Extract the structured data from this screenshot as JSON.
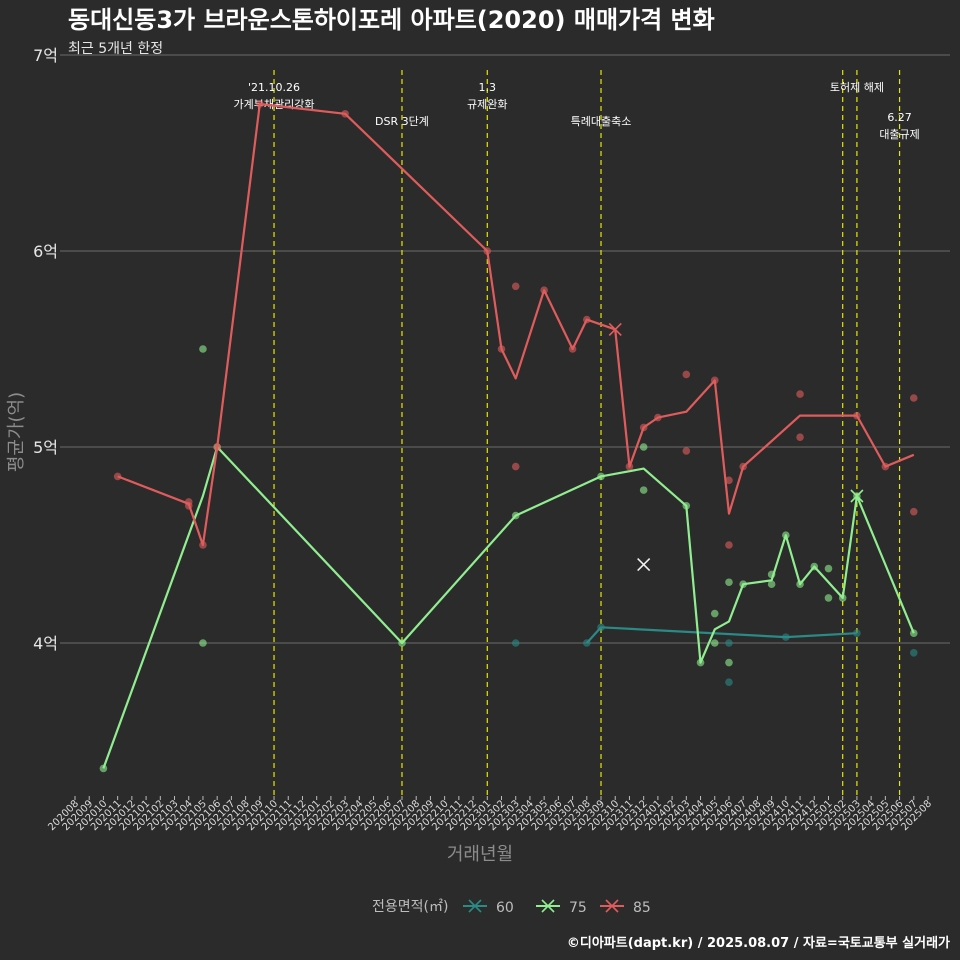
{
  "chart_data": {
    "type": "line",
    "title": "동대신동3가 브라운스톤하이포레 아파트(2020) 매매가격 변화",
    "subtitle": "최근 5개년 한정",
    "xlabel": "거래년월",
    "ylabel": "평균가(억)",
    "ylim": [
      3.25,
      7.0
    ],
    "yticks": [
      4,
      5,
      6,
      7
    ],
    "ytick_labels": [
      "4억",
      "5억",
      "6억",
      "7억"
    ],
    "grid": true,
    "x_categories": [
      "202008",
      "202009",
      "202010",
      "202011",
      "202012",
      "202101",
      "202102",
      "202103",
      "202104",
      "202105",
      "202106",
      "202107",
      "202108",
      "202109",
      "202110",
      "202111",
      "202112",
      "202201",
      "202202",
      "202203",
      "202204",
      "202205",
      "202206",
      "202207",
      "202208",
      "202209",
      "202210",
      "202211",
      "202212",
      "202301",
      "202302",
      "202303",
      "202304",
      "202305",
      "202306",
      "202307",
      "202308",
      "202309",
      "202310",
      "202311",
      "202312",
      "202401",
      "202402",
      "202403",
      "202404",
      "202405",
      "202406",
      "202407",
      "202408",
      "202409",
      "202410",
      "202411",
      "202412",
      "202501",
      "202502",
      "202503",
      "202504",
      "202505",
      "202506",
      "202507",
      "202508"
    ],
    "legend": {
      "title": "전용면적(㎡)",
      "position": "bottom",
      "entries": [
        "60",
        "75",
        "85"
      ]
    },
    "series": [
      {
        "name": "60",
        "color": "#2a8a86",
        "line": [
          [
            "202308",
            4.0
          ],
          [
            "202309",
            4.08
          ],
          [
            "202410",
            4.03
          ],
          [
            "202503",
            4.05
          ]
        ],
        "points": [
          [
            "202303",
            4.0
          ],
          [
            "202308",
            4.0
          ],
          [
            "202309",
            4.08
          ],
          [
            "202406",
            4.0
          ],
          [
            "202406",
            3.8
          ],
          [
            "202410",
            4.03
          ],
          [
            "202503",
            4.05
          ],
          [
            "202507",
            3.95
          ]
        ],
        "cross": []
      },
      {
        "name": "75",
        "color": "#90ee90",
        "line": [
          [
            "202010",
            3.36
          ],
          [
            "202105",
            4.75
          ],
          [
            "202106",
            5.0
          ],
          [
            "202207",
            4.0
          ],
          [
            "202303",
            4.65
          ],
          [
            "202309",
            4.85
          ],
          [
            "202312",
            4.89
          ],
          [
            "202403",
            4.7
          ],
          [
            "202404",
            3.9
          ],
          [
            "202405",
            4.07
          ],
          [
            "202406",
            4.11
          ],
          [
            "202407",
            4.3
          ],
          [
            "202409",
            4.32
          ],
          [
            "202410",
            4.55
          ],
          [
            "202411",
            4.3
          ],
          [
            "202412",
            4.39
          ],
          [
            "202502",
            4.23
          ],
          [
            "202503",
            4.75
          ],
          [
            "202507",
            4.05
          ]
        ],
        "points": [
          [
            "202010",
            3.36
          ],
          [
            "202105",
            5.5
          ],
          [
            "202105",
            4.0
          ],
          [
            "202106",
            5.0
          ],
          [
            "202207",
            4.0
          ],
          [
            "202303",
            4.65
          ],
          [
            "202309",
            4.85
          ],
          [
            "202312",
            5.0
          ],
          [
            "202312",
            4.78
          ],
          [
            "202403",
            4.7
          ],
          [
            "202404",
            3.9
          ],
          [
            "202405",
            4.15
          ],
          [
            "202405",
            4.0
          ],
          [
            "202406",
            4.31
          ],
          [
            "202406",
            3.9
          ],
          [
            "202407",
            4.3
          ],
          [
            "202409",
            4.35
          ],
          [
            "202409",
            4.3
          ],
          [
            "202410",
            4.55
          ],
          [
            "202411",
            4.3
          ],
          [
            "202412",
            4.39
          ],
          [
            "202501",
            4.23
          ],
          [
            "202501",
            4.38
          ],
          [
            "202502",
            4.23
          ],
          [
            "202503",
            4.75
          ],
          [
            "202507",
            4.05
          ]
        ],
        "cross": [
          [
            "202312",
            4.4
          ],
          [
            "202503",
            4.75
          ]
        ]
      },
      {
        "name": "85",
        "color": "#e05c5c",
        "line": [
          [
            "202011",
            4.85
          ],
          [
            "202104",
            4.71
          ],
          [
            "202105",
            4.5
          ],
          [
            "202106",
            5.0
          ],
          [
            "202109",
            6.75
          ],
          [
            "202203",
            6.7
          ],
          [
            "202301",
            6.0
          ],
          [
            "202302",
            5.5
          ],
          [
            "202303",
            5.35
          ],
          [
            "202305",
            5.8
          ],
          [
            "202307",
            5.5
          ],
          [
            "202308",
            5.65
          ],
          [
            "202310",
            5.6
          ],
          [
            "202311",
            4.9
          ],
          [
            "202312",
            5.1
          ],
          [
            "202401",
            5.15
          ],
          [
            "202403",
            5.18
          ],
          [
            "202405",
            5.34
          ],
          [
            "202406",
            4.66
          ],
          [
            "202407",
            4.9
          ],
          [
            "202411",
            5.16
          ],
          [
            "202503",
            5.16
          ],
          [
            "202505",
            4.9
          ],
          [
            "202507",
            4.96
          ]
        ],
        "points": [
          [
            "202011",
            4.85
          ],
          [
            "202104",
            4.72
          ],
          [
            "202104",
            4.7
          ],
          [
            "202105",
            4.5
          ],
          [
            "202106",
            5.0
          ],
          [
            "202109",
            6.75
          ],
          [
            "202203",
            6.7
          ],
          [
            "202301",
            6.0
          ],
          [
            "202302",
            5.5
          ],
          [
            "202303",
            5.82
          ],
          [
            "202303",
            4.9
          ],
          [
            "202305",
            5.8
          ],
          [
            "202307",
            5.5
          ],
          [
            "202308",
            5.65
          ],
          [
            "202311",
            4.9
          ],
          [
            "202312",
            5.1
          ],
          [
            "202401",
            5.15
          ],
          [
            "202403",
            5.37
          ],
          [
            "202403",
            4.98
          ],
          [
            "202405",
            5.34
          ],
          [
            "202406",
            4.83
          ],
          [
            "202406",
            4.5
          ],
          [
            "202407",
            4.9
          ],
          [
            "202411",
            5.27
          ],
          [
            "202411",
            5.05
          ],
          [
            "202503",
            5.16
          ],
          [
            "202505",
            4.9
          ],
          [
            "202507",
            5.25
          ],
          [
            "202507",
            4.67
          ]
        ],
        "cross": [
          [
            "202310",
            5.6
          ]
        ]
      }
    ],
    "events": [
      {
        "x": "202110",
        "lines": [
          "'21.10.26",
          "가계부채관리강화"
        ],
        "row": 0
      },
      {
        "x": "202207",
        "lines": [
          "DSR 3단계"
        ],
        "row": 1
      },
      {
        "x": "202301",
        "lines": [
          "1.3",
          "규제완화"
        ],
        "row": 0
      },
      {
        "x": "202309",
        "lines": [
          "특례대출축소"
        ],
        "row": 1
      },
      {
        "x": "202502",
        "lines": [],
        "row": 0
      },
      {
        "x": "202503",
        "lines": [
          "토허제 해제"
        ],
        "row": 0
      },
      {
        "x": "202506",
        "lines": [
          "6.27",
          "대출규제"
        ],
        "row": 2
      }
    ],
    "caption": "©디아파트(dapt.kr) / 2025.08.07 / 자료=국토교통부 실거래가"
  }
}
